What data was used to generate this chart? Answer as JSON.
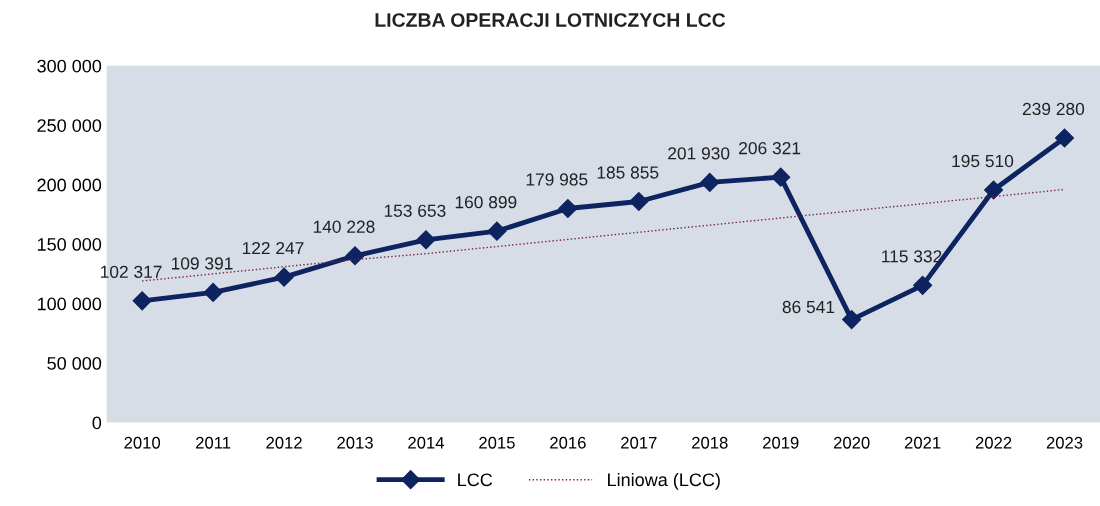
{
  "chart_data": {
    "type": "line",
    "title": "LICZBA OPERACJI LOTNICZYCH LCC",
    "categories": [
      "2010",
      "2011",
      "2012",
      "2013",
      "2014",
      "2015",
      "2016",
      "2017",
      "2018",
      "2019",
      "2020",
      "2021",
      "2022",
      "2023"
    ],
    "series": [
      {
        "name": "LCC",
        "color": "#0d2461",
        "marker": "diamond",
        "line_style": "solid",
        "values": [
          102317,
          109391,
          122247,
          140228,
          153653,
          160899,
          179985,
          185855,
          201930,
          206321,
          86541,
          115332,
          195510,
          239280
        ],
        "value_labels": [
          "102 317",
          "109 391",
          "122 247",
          "140 228",
          "153 653",
          "160 899",
          "179 985",
          "185 855",
          "201 930",
          "206 321",
          "86 541",
          "115 332",
          "195 510",
          "239 280"
        ]
      },
      {
        "name": "Liniowa (LCC)",
        "type": "line",
        "color": "#7a1f3d",
        "marker": "none",
        "line_style": "dotted",
        "values": [
          119000,
          125000,
          131000,
          137000,
          142000,
          148000,
          154000,
          160000,
          166000,
          172000,
          178000,
          184000,
          190000,
          196000
        ]
      }
    ],
    "ylim": [
      0,
      300000
    ],
    "yticks": [
      0,
      {
        "value": 50000,
        "label": "50 000"
      },
      {
        "value": 100000,
        "label": "100 000"
      },
      {
        "value": 150000,
        "label": "150 000"
      },
      {
        "value": 200000,
        "label": "200 000"
      },
      {
        "value": 250000,
        "label": "250 000"
      },
      {
        "value": 300000,
        "label": "300 000"
      }
    ],
    "grid": false,
    "legend": "bottom"
  }
}
